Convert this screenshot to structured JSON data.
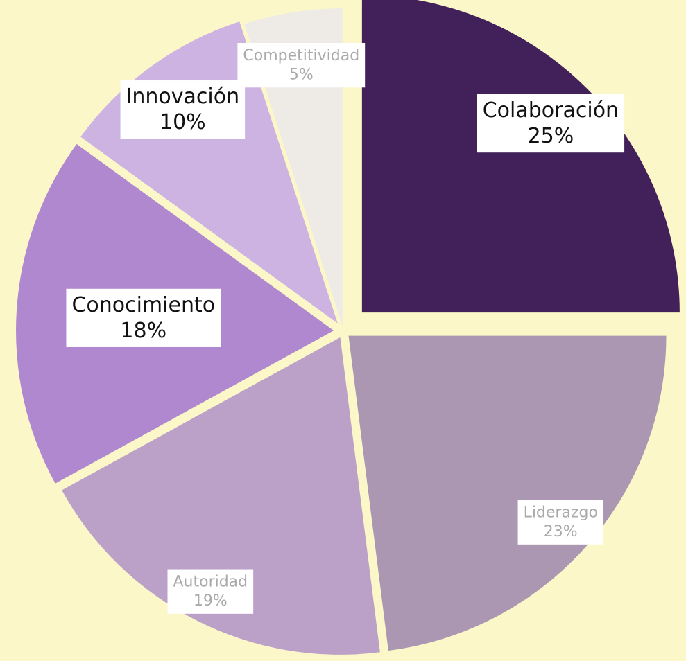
{
  "chart_data": {
    "type": "pie",
    "categories": [
      "Colaboración",
      "Liderazgo",
      "Autoridad",
      "Conocimiento",
      "Innovación",
      "Competitividad"
    ],
    "values": [
      25,
      23,
      19,
      18,
      10,
      5
    ],
    "value_labels": [
      "25%",
      "23%",
      "19%",
      "18%",
      "10%",
      "5%"
    ],
    "colors": [
      "#42215a",
      "#ab97b1",
      "#bba0c8",
      "#b088d0",
      "#cdb3e2",
      "#eeebe6"
    ]
  }
}
